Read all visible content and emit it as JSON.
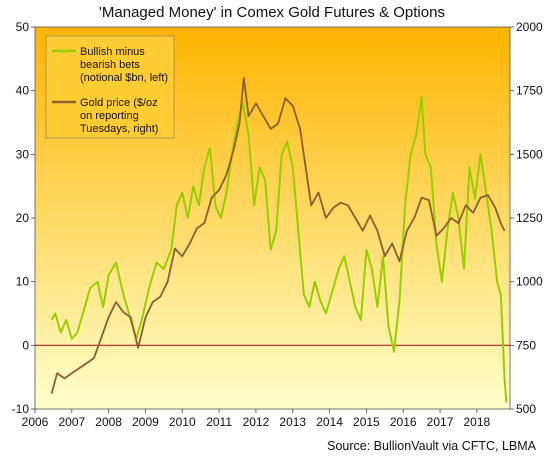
{
  "chart_data": {
    "type": "line",
    "title": "'Managed Money' in Comex Gold Futures & Options",
    "source": "Source: BullionVault via CFTC, LBMA",
    "x_ticks": [
      "2006",
      "2007",
      "2008",
      "2009",
      "2010",
      "2011",
      "2012",
      "2013",
      "2014",
      "2015",
      "2016",
      "2017",
      "2018"
    ],
    "xlim": [
      2006.0,
      2018.9
    ],
    "left_axis": {
      "ticks": [
        "-10",
        "0",
        "10",
        "20",
        "30",
        "40",
        "50"
      ],
      "ylim": [
        -10,
        50
      ]
    },
    "right_axis": {
      "ticks": [
        "500",
        "750",
        "1000",
        "1250",
        "1500",
        "1750",
        "2000"
      ],
      "ylim": [
        500,
        2000
      ]
    },
    "zero_line": 0,
    "colors": {
      "bullish_series": "#9acd00",
      "gold_series": "#8b5e2e",
      "zero_line": "#b22222",
      "bg_top": "#ffb400",
      "bg_bottom": "#ffffcc"
    },
    "legend": {
      "placement": "top-left",
      "items": [
        {
          "lines": [
            "Bullish minus",
            "bearish bets",
            "(notional $bn, left)"
          ],
          "color": "#9acd00"
        },
        {
          "lines": [
            "Gold price ($/oz",
            "on reporting",
            "Tuesdays, right)"
          ],
          "color": "#8b5e2e"
        }
      ]
    },
    "series": [
      {
        "axis": "left",
        "x": [
          2006.45,
          2006.55,
          2006.7,
          2006.85,
          2007.0,
          2007.15,
          2007.3,
          2007.5,
          2007.7,
          2007.85,
          2008.0,
          2008.2,
          2008.4,
          2008.6,
          2008.75,
          2008.9,
          2009.1,
          2009.3,
          2009.5,
          2009.7,
          2009.85,
          2010.0,
          2010.15,
          2010.3,
          2010.45,
          2010.6,
          2010.75,
          2010.9,
          2011.05,
          2011.2,
          2011.35,
          2011.5,
          2011.65,
          2011.8,
          2011.95,
          2012.1,
          2012.25,
          2012.4,
          2012.55,
          2012.7,
          2012.85,
          2013.0,
          2013.15,
          2013.3,
          2013.45,
          2013.6,
          2013.75,
          2013.9,
          2014.1,
          2014.25,
          2014.4,
          2014.55,
          2014.7,
          2014.85,
          2015.0,
          2015.15,
          2015.3,
          2015.45,
          2015.6,
          2015.75,
          2015.9,
          2016.05,
          2016.2,
          2016.35,
          2016.5,
          2016.6,
          2016.75,
          2016.9,
          2017.05,
          2017.2,
          2017.35,
          2017.5,
          2017.65,
          2017.8,
          2017.95,
          2018.1,
          2018.25,
          2018.4,
          2018.55,
          2018.65,
          2018.75,
          2018.8
        ],
        "values": [
          4,
          5,
          2,
          4,
          1,
          2,
          5,
          9,
          10,
          6,
          11,
          13,
          8,
          4,
          1,
          4,
          9,
          13,
          12,
          15,
          22,
          24,
          20,
          25,
          22,
          28,
          31,
          22,
          20,
          24,
          30,
          35,
          38,
          33,
          22,
          28,
          26,
          15,
          18,
          30,
          32,
          28,
          18,
          8,
          6,
          10,
          7,
          5,
          9,
          12,
          14,
          10,
          6,
          4,
          15,
          12,
          6,
          14,
          3,
          -1,
          7,
          22,
          30,
          33,
          39,
          30,
          28,
          16,
          10,
          18,
          24,
          20,
          12,
          28,
          23,
          30,
          24,
          18,
          10,
          8,
          -5,
          -9
        ]
      },
      {
        "axis": "right",
        "x": [
          2006.45,
          2006.6,
          2006.8,
          2007.0,
          2007.2,
          2007.4,
          2007.6,
          2007.8,
          2008.0,
          2008.2,
          2008.4,
          2008.6,
          2008.8,
          2009.0,
          2009.2,
          2009.4,
          2009.6,
          2009.8,
          2010.0,
          2010.2,
          2010.4,
          2010.6,
          2010.8,
          2011.0,
          2011.2,
          2011.4,
          2011.55,
          2011.67,
          2011.8,
          2012.0,
          2012.2,
          2012.4,
          2012.6,
          2012.8,
          2013.0,
          2013.2,
          2013.35,
          2013.5,
          2013.7,
          2013.9,
          2014.1,
          2014.3,
          2014.5,
          2014.7,
          2014.9,
          2015.1,
          2015.3,
          2015.5,
          2015.7,
          2015.9,
          2016.1,
          2016.3,
          2016.5,
          2016.7,
          2016.9,
          2017.1,
          2017.3,
          2017.5,
          2017.7,
          2017.9,
          2018.1,
          2018.3,
          2018.5,
          2018.65,
          2018.75
        ],
        "values": [
          560,
          640,
          620,
          640,
          660,
          680,
          700,
          780,
          860,
          920,
          880,
          860,
          740,
          860,
          920,
          940,
          1000,
          1130,
          1100,
          1150,
          1210,
          1230,
          1330,
          1360,
          1420,
          1520,
          1620,
          1800,
          1650,
          1700,
          1650,
          1600,
          1620,
          1720,
          1690,
          1600,
          1450,
          1300,
          1350,
          1250,
          1290,
          1310,
          1300,
          1250,
          1200,
          1260,
          1200,
          1100,
          1150,
          1080,
          1200,
          1250,
          1330,
          1320,
          1180,
          1210,
          1250,
          1230,
          1300,
          1270,
          1330,
          1340,
          1290,
          1230,
          1200
        ]
      }
    ]
  }
}
